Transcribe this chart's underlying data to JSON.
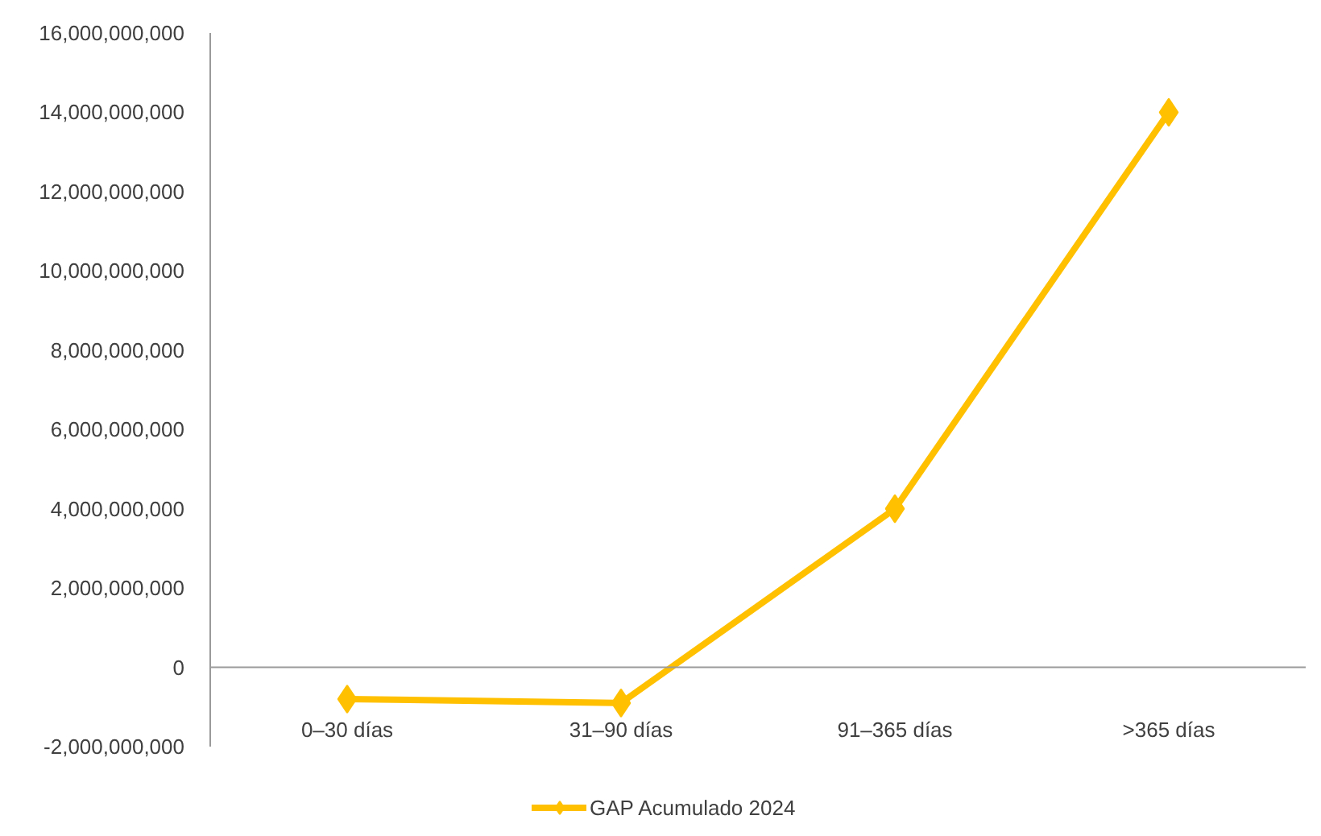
{
  "chart_data": {
    "type": "line",
    "categories": [
      "0–30 días",
      "31–90 días",
      "91–365 días",
      ">365 días"
    ],
    "series": [
      {
        "name": "GAP Acumulado 2024",
        "color": "#ffc000",
        "values": [
          -800000000,
          -900000000,
          4000000000,
          14000000000
        ]
      }
    ],
    "ylim": [
      -2000000000,
      16000000000
    ],
    "yticks": [
      {
        "value": -2000000000,
        "label": "-2,000,000,000"
      },
      {
        "value": 0,
        "label": "0"
      },
      {
        "value": 2000000000,
        "label": "2,000,000,000"
      },
      {
        "value": 4000000000,
        "label": "4,000,000,000"
      },
      {
        "value": 6000000000,
        "label": "6,000,000,000"
      },
      {
        "value": 8000000000,
        "label": "8,000,000,000"
      },
      {
        "value": 10000000000,
        "label": "10,000,000,000"
      },
      {
        "value": 12000000000,
        "label": "12,000,000,000"
      },
      {
        "value": 14000000000,
        "label": "14,000,000,000"
      },
      {
        "value": 16000000000,
        "label": "16,000,000,000"
      }
    ],
    "grid": false,
    "legend": "bottom",
    "marker": "diamond",
    "line_style": "solid"
  }
}
